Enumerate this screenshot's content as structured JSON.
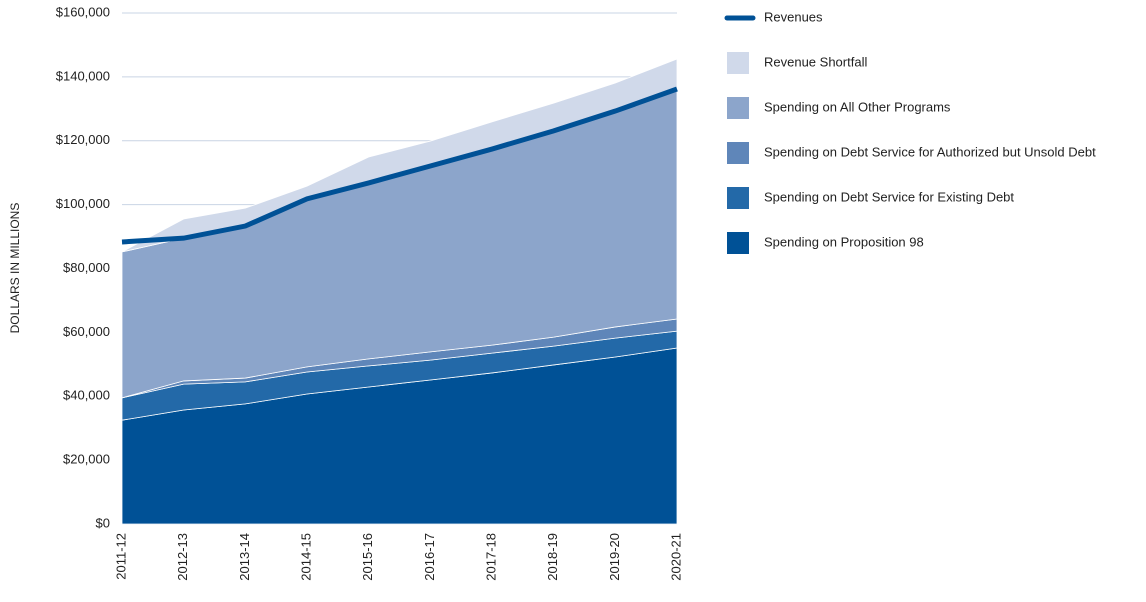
{
  "chart_data": {
    "type": "stacked_area_line",
    "y_label": "DOLLARS IN MILLIONS",
    "categories": [
      "2011-12",
      "2012-13",
      "2013-14",
      "2014-15",
      "2015-16",
      "2016-17",
      "2017-18",
      "2018-19",
      "2019-20",
      "2020-21"
    ],
    "ylim": [
      0,
      160000
    ],
    "yticks": [
      {
        "value": 0,
        "label": "$0"
      },
      {
        "value": 20000,
        "label": "$20,000"
      },
      {
        "value": 40000,
        "label": "$40,000"
      },
      {
        "value": 60000,
        "label": "$60,000"
      },
      {
        "value": 80000,
        "label": "$80,000"
      },
      {
        "value": 100000,
        "label": "$100,000"
      },
      {
        "value": 120000,
        "label": "$120,000"
      },
      {
        "value": 140000,
        "label": "$140,000"
      },
      {
        "value": 160000,
        "label": "$160,000"
      }
    ],
    "grid": true,
    "legend": "right",
    "series": [
      {
        "name": "Revenues",
        "kind": "line",
        "color": "#005196",
        "values": [
          88300,
          89500,
          93300,
          101800,
          106800,
          112100,
          117400,
          123100,
          129300,
          136200
        ]
      },
      {
        "name": "Revenue Shortfall",
        "kind": "area",
        "color": "#d0d9ea",
        "values": [
          0,
          6000,
          5600,
          4000,
          8100,
          7800,
          8500,
          8700,
          8800,
          9400
        ]
      },
      {
        "name": "Spending on All Other Programs",
        "kind": "area",
        "color": "#8ca5cb",
        "values": [
          45700,
          44700,
          47600,
          52600,
          55100,
          58200,
          61400,
          64600,
          67600,
          72000
        ]
      },
      {
        "name": "Spending on Debt Service for Authorized but Unsold Debt",
        "kind": "area",
        "color": "#5f86b9",
        "values": [
          0,
          1000,
          1200,
          1600,
          2200,
          2600,
          2500,
          2800,
          3500,
          3800
        ]
      },
      {
        "name": "Spending on Debt Service for Existing Debt",
        "kind": "area",
        "color": "#2369a8",
        "values": [
          7000,
          8100,
          6900,
          6900,
          6600,
          6200,
          6200,
          5900,
          5900,
          5300
        ]
      },
      {
        "name": "Spending on Proposition 98",
        "kind": "area",
        "color": "#005196",
        "values": [
          32500,
          35700,
          37600,
          40700,
          42900,
          45100,
          47300,
          49800,
          52300,
          55100
        ]
      }
    ]
  }
}
